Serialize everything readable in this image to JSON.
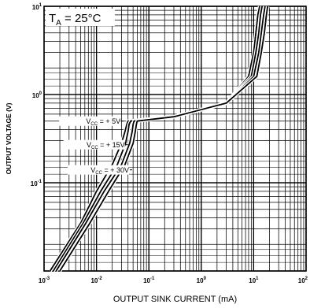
{
  "chart_data": {
    "type": "line",
    "title": "",
    "annotation": {
      "prefix": "T",
      "sub": "A",
      "suffix": " = 25°C"
    },
    "xlabel": "OUTPUT SINK CURRENT (mA)",
    "ylabel": "OUTPUT VOLTAGE (V)",
    "x_scale": "log",
    "y_scale": "log",
    "xlim": [
      0.001,
      100
    ],
    "ylim": [
      0.01,
      10
    ],
    "x_ticks": [
      {
        "base": "10",
        "exp": "-3"
      },
      {
        "base": "10",
        "exp": "-2"
      },
      {
        "base": "10",
        "exp": "-1"
      },
      {
        "base": "10",
        "exp": "0"
      },
      {
        "base": "10",
        "exp": "1"
      },
      {
        "base": "10",
        "exp": "2"
      }
    ],
    "y_ticks": [
      {
        "base": "10",
        "exp": "-1"
      },
      {
        "base": "10",
        "exp": "0"
      },
      {
        "base": "10",
        "exp": "1"
      }
    ],
    "grid": true,
    "series": [
      {
        "name": "Vcc = +5V",
        "label": {
          "prefix": "V",
          "sub": "CC",
          "suffix": " = + 5V"
        },
        "x": [
          0.0013,
          0.005,
          0.01,
          0.02,
          0.03,
          0.035,
          0.038,
          0.04,
          0.3,
          3,
          8,
          10,
          11,
          12,
          13
        ],
        "y": [
          0.01,
          0.035,
          0.08,
          0.16,
          0.28,
          0.38,
          0.46,
          0.5,
          0.56,
          0.8,
          1.6,
          3,
          5,
          8,
          10
        ]
      },
      {
        "name": "Vcc = +15V",
        "label": {
          "prefix": "V",
          "sub": "CC",
          "suffix": " = + 15V"
        },
        "x": [
          0.0015,
          0.0056,
          0.012,
          0.025,
          0.036,
          0.04,
          0.042,
          0.045,
          0.3,
          3,
          9,
          11,
          12.5,
          13.5,
          14.5
        ],
        "y": [
          0.01,
          0.035,
          0.08,
          0.16,
          0.28,
          0.38,
          0.46,
          0.5,
          0.56,
          0.8,
          1.6,
          3,
          5,
          8,
          10
        ]
      },
      {
        "name": "Vcc = +30V",
        "label": {
          "prefix": "V",
          "sub": "CC",
          "suffix": " = + 30V"
        },
        "x": [
          0.0017,
          0.0063,
          0.014,
          0.03,
          0.043,
          0.048,
          0.05,
          0.052,
          0.3,
          3,
          10,
          12.5,
          14,
          15.5,
          16.5
        ],
        "y": [
          0.01,
          0.035,
          0.08,
          0.16,
          0.28,
          0.38,
          0.46,
          0.5,
          0.56,
          0.8,
          1.6,
          3,
          5,
          8,
          10
        ]
      },
      {
        "name": "",
        "x": [
          0.002,
          0.0075,
          0.017,
          0.035,
          0.05,
          0.055,
          0.058,
          0.06,
          0.3,
          3,
          11.5,
          14,
          16,
          17.5,
          18.5
        ],
        "y": [
          0.01,
          0.035,
          0.08,
          0.16,
          0.28,
          0.38,
          0.46,
          0.5,
          0.56,
          0.8,
          1.6,
          3,
          5,
          8,
          10
        ]
      }
    ],
    "label_anchors": [
      {
        "series": 0,
        "at": 0.033,
        "value": 0.5
      },
      {
        "series": 1,
        "at": 0.04,
        "value": 0.27
      },
      {
        "series": 2,
        "at": 0.048,
        "value": 0.14
      }
    ]
  }
}
